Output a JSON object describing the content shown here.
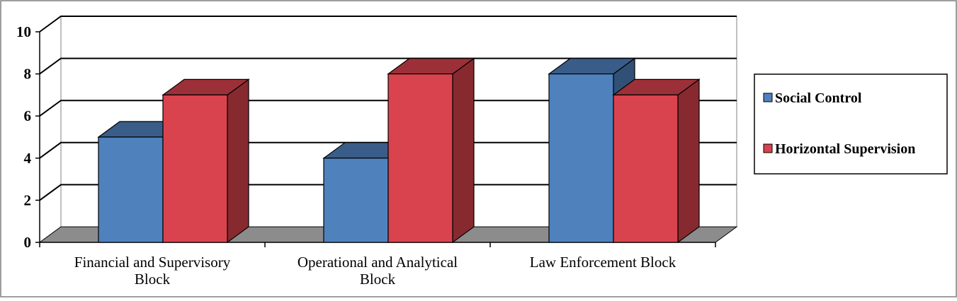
{
  "chart_data": {
    "type": "bar",
    "categories": [
      [
        "Financial and Supervisory",
        "Block"
      ],
      [
        "Operational and Analytical",
        "Block"
      ],
      [
        "Law Enforcement Block"
      ]
    ],
    "series": [
      {
        "name": "Social Control",
        "values": [
          5,
          4,
          8
        ],
        "color": "#4f81bd"
      },
      {
        "name": "Horizontal Supervision",
        "values": [
          7,
          8,
          7
        ],
        "color": "#d9434e"
      }
    ],
    "ylim": [
      0,
      10
    ],
    "yticks": [
      "0",
      "2",
      "4",
      "6",
      "8",
      "10"
    ],
    "grid": true,
    "legend_position": "right",
    "style": "3d-clustered-column",
    "floor_color": "#8c8c8c"
  }
}
